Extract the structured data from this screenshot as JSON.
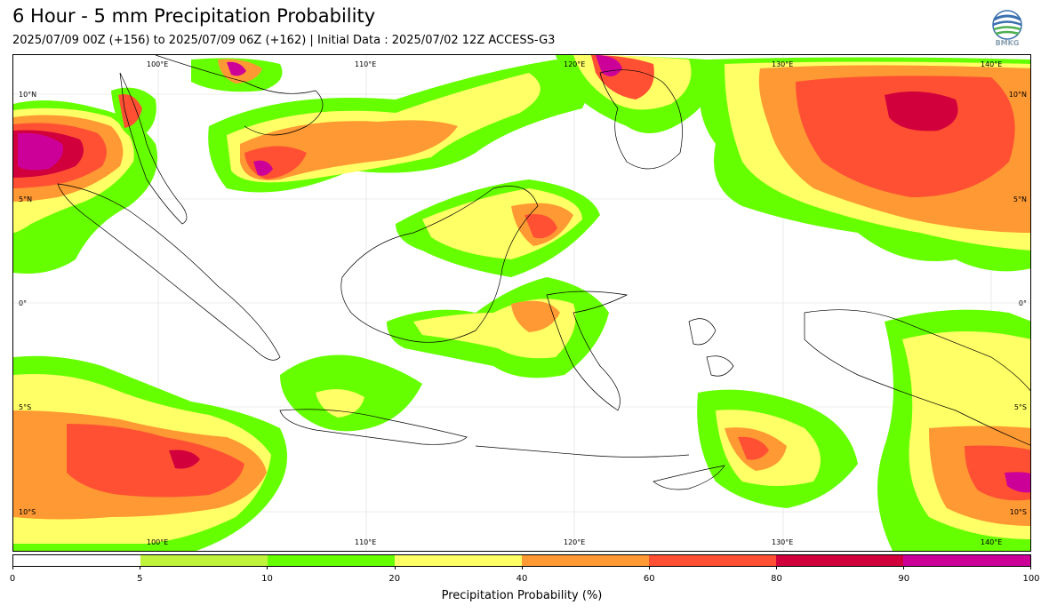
{
  "header": {
    "title": "6 Hour - 5 mm Precipitation Probability",
    "subtitle": "2025/07/09 00Z (+156) to 2025/07/09 06Z (+162) | Initial Data : 2025/07/02 12Z ACCESS-G3",
    "logo_text": "BMKG"
  },
  "map": {
    "lon_labels": [
      "100°E",
      "110°E",
      "120°E",
      "130°E",
      "140°E"
    ],
    "lat_labels": [
      "10°N",
      "5°N",
      "0°",
      "5°S",
      "10°S"
    ],
    "colors": {
      "c5": "#bff23b",
      "c10": "#66ff00",
      "c20": "#ffff66",
      "c40": "#ff9933",
      "c60": "#ff5033",
      "c80": "#d1003d",
      "c90": "#cc0099"
    }
  },
  "colorbar": {
    "ticks": [
      "0",
      "5",
      "10",
      "20",
      "40",
      "60",
      "80",
      "90",
      "100"
    ],
    "colors": [
      "#ffffff",
      "#bff23b",
      "#66ff00",
      "#ffff66",
      "#ff9933",
      "#ff5033",
      "#d1003d",
      "#cc0099"
    ],
    "label": "Precipitation Probability (%)"
  }
}
